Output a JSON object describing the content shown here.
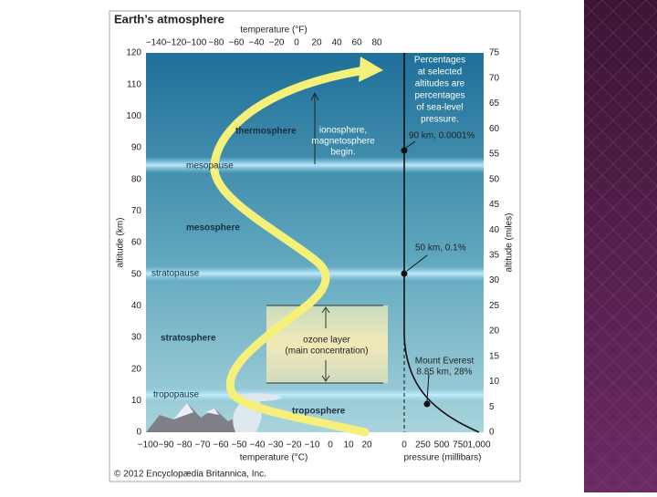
{
  "title": "Earth’s atmosphere",
  "top_axis": {
    "label": "temperature (°F)",
    "ticks": [
      "−140",
      "−120",
      "−100",
      "−80",
      "−60",
      "−40",
      "−20",
      "0",
      "20",
      "40",
      "60",
      "80"
    ]
  },
  "bottom_axis": {
    "label": "temperature (°C)",
    "ticks": [
      "−100",
      "−90",
      "−80",
      "−70",
      "−60",
      "−50",
      "−40",
      "−30",
      "−20",
      "−10",
      "0",
      "10",
      "20"
    ]
  },
  "left_axis": {
    "label": "altitude (km)",
    "ticks": [
      "0",
      "10",
      "20",
      "30",
      "40",
      "50",
      "60",
      "70",
      "80",
      "90",
      "100",
      "110",
      "120"
    ]
  },
  "right_axis": {
    "label": "altitude (miles)",
    "ticks": [
      "0",
      "5",
      "10",
      "15",
      "20",
      "25",
      "30",
      "35",
      "40",
      "45",
      "50",
      "55",
      "60",
      "65",
      "70",
      "75"
    ]
  },
  "pressure_axis": {
    "label": "pressure (millibars)",
    "ticks": [
      "0",
      "250",
      "500",
      "750",
      "1,000"
    ]
  },
  "layers": {
    "thermosphere": "thermosphere",
    "mesopause": "mesopause",
    "mesosphere": "mesosphere",
    "stratopause": "stratopause",
    "stratosphere": "stratosphere",
    "tropopause": "tropopause",
    "troposphere": "troposphere"
  },
  "ionosphere_note": [
    "ionosphere,",
    "magnetosphere",
    "begin."
  ],
  "pressure_note": [
    "Percentages",
    "at selected",
    "altitudes are",
    "percentages",
    "of sea-level",
    "pressure."
  ],
  "point_90": "90 km, 0.0001%",
  "point_50": "50 km, 0.1%",
  "everest": [
    "Mount Everest",
    "8.85 km, 28%"
  ],
  "ozone": [
    "ozone layer",
    "(main concentration)"
  ],
  "copyright": "© 2012 Encyclopædia Britannica, Inc."
}
